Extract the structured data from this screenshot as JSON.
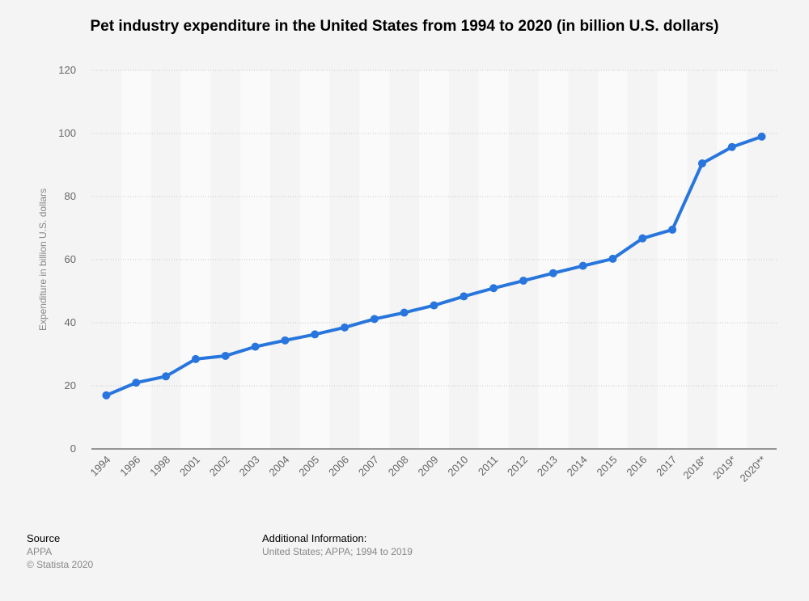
{
  "chart_data": {
    "type": "line",
    "title": "Pet industry expenditure in the United States from 1994 to 2020 (in billion U.S. dollars)",
    "xlabel": "",
    "ylabel": "Expenditure in billion U.S. dollars",
    "ylim": [
      0,
      120
    ],
    "yticks": [
      0,
      20,
      40,
      60,
      80,
      100,
      120
    ],
    "grid": true,
    "categories": [
      "1994",
      "1996",
      "1998",
      "2001",
      "2002",
      "2003",
      "2004",
      "2005",
      "2006",
      "2007",
      "2008",
      "2009",
      "2010",
      "2011",
      "2012",
      "2013",
      "2014",
      "2015",
      "2016",
      "2017",
      "2018*",
      "2019*",
      "2020**"
    ],
    "series": [
      {
        "name": "Expenditure",
        "values": [
          17,
          21,
          23,
          28.5,
          29.5,
          32.4,
          34.4,
          36.3,
          38.5,
          41.2,
          43.2,
          45.5,
          48.35,
          50.96,
          53.33,
          55.72,
          58.04,
          60.28,
          66.75,
          69.51,
          90.5,
          95.7,
          99
        ],
        "color": "#2876dd"
      }
    ]
  },
  "footer": {
    "source_label": "Source",
    "source": "APPA",
    "copyright": "© Statista 2020",
    "info_label": "Additional Information:",
    "info": "United States; APPA; 1994 to 2019"
  }
}
